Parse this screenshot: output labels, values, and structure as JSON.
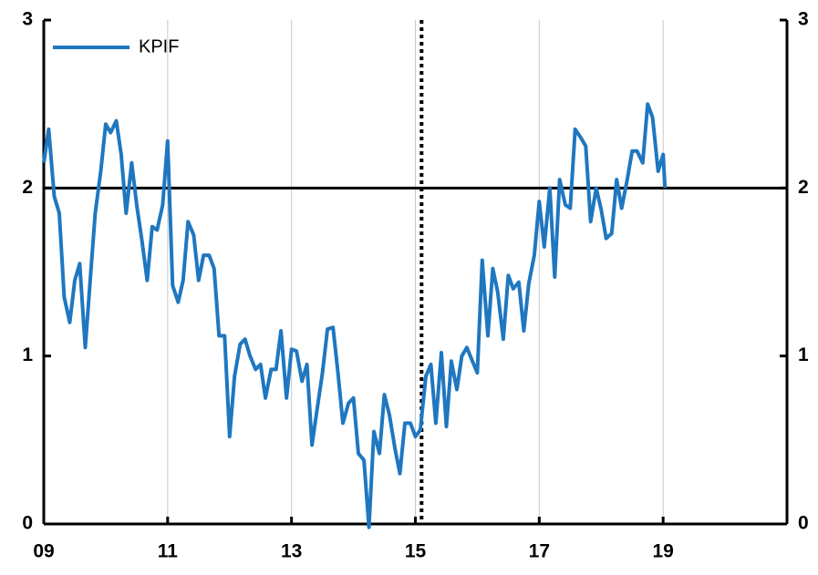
{
  "chart_data": {
    "type": "line",
    "x": [
      2009,
      2009.08,
      2009.17,
      2009.25,
      2009.33,
      2009.42,
      2009.5,
      2009.58,
      2009.67,
      2009.75,
      2009.83,
      2009.92,
      2010,
      2010.08,
      2010.17,
      2010.25,
      2010.33,
      2010.42,
      2010.5,
      2010.58,
      2010.67,
      2010.75,
      2010.83,
      2010.92,
      2011,
      2011.08,
      2011.17,
      2011.25,
      2011.33,
      2011.42,
      2011.5,
      2011.58,
      2011.67,
      2011.75,
      2011.83,
      2011.92,
      2012,
      2012.08,
      2012.17,
      2012.25,
      2012.33,
      2012.42,
      2012.5,
      2012.58,
      2012.67,
      2012.75,
      2012.83,
      2012.92,
      2013,
      2013.08,
      2013.17,
      2013.25,
      2013.33,
      2013.42,
      2013.5,
      2013.58,
      2013.67,
      2013.75,
      2013.83,
      2013.92,
      2014,
      2014.08,
      2014.17,
      2014.25,
      2014.33,
      2014.42,
      2014.5,
      2014.58,
      2014.67,
      2014.75,
      2014.83,
      2014.92,
      2015,
      2015.08,
      2015.17,
      2015.25,
      2015.33,
      2015.42,
      2015.5,
      2015.58,
      2015.67,
      2015.75,
      2015.83,
      2015.92,
      2016,
      2016.08,
      2016.17,
      2016.25,
      2016.33,
      2016.42,
      2016.5,
      2016.58,
      2016.67,
      2016.75,
      2016.83,
      2016.92,
      2017,
      2017.08,
      2017.17,
      2017.25,
      2017.33,
      2017.42,
      2017.5,
      2017.58,
      2017.67,
      2017.75,
      2017.83,
      2017.92,
      2018,
      2018.08,
      2018.17,
      2018.25,
      2018.33,
      2018.42,
      2018.5,
      2018.58,
      2018.67,
      2018.75,
      2018.83,
      2018.92,
      2019,
      2019.03
    ],
    "series": [
      {
        "name": "KPIF",
        "color": "#1f77c0",
        "values": [
          2.15,
          2.35,
          1.95,
          1.85,
          1.35,
          1.2,
          1.45,
          1.55,
          1.05,
          1.45,
          1.85,
          2.1,
          2.38,
          2.33,
          2.4,
          2.2,
          1.85,
          2.15,
          1.9,
          1.7,
          1.45,
          1.77,
          1.75,
          1.9,
          2.28,
          1.42,
          1.32,
          1.45,
          1.8,
          1.72,
          1.45,
          1.6,
          1.6,
          1.52,
          1.12,
          1.12,
          0.52,
          0.88,
          1.07,
          1.1,
          1.0,
          0.92,
          0.95,
          0.75,
          0.92,
          0.92,
          1.15,
          0.75,
          1.04,
          1.03,
          0.85,
          0.95,
          0.47,
          0.7,
          0.9,
          1.16,
          1.17,
          0.9,
          0.6,
          0.72,
          0.75,
          0.42,
          0.38,
          -0.02,
          0.55,
          0.42,
          0.77,
          0.65,
          0.45,
          0.3,
          0.6,
          0.6,
          0.52,
          0.56,
          0.88,
          0.95,
          0.6,
          1.02,
          0.58,
          0.97,
          0.8,
          1.0,
          1.05,
          0.97,
          0.9,
          1.57,
          1.12,
          1.52,
          1.38,
          1.1,
          1.48,
          1.4,
          1.44,
          1.15,
          1.43,
          1.6,
          1.92,
          1.65,
          2.0,
          1.47,
          2.05,
          1.9,
          1.88,
          2.35,
          2.3,
          2.25,
          1.8,
          2.0,
          1.87,
          1.7,
          1.73,
          2.05,
          1.88,
          2.05,
          2.22,
          2.22,
          2.15,
          2.5,
          2.42,
          2.1,
          2.2,
          2.0
        ]
      }
    ],
    "xlim": [
      2009,
      2021
    ],
    "xticks": [
      {
        "value": 2009,
        "label": "09"
      },
      {
        "value": 2011,
        "label": "11"
      },
      {
        "value": 2013,
        "label": "13"
      },
      {
        "value": 2015,
        "label": "15"
      },
      {
        "value": 2017,
        "label": "17"
      },
      {
        "value": 2019,
        "label": "19"
      }
    ],
    "ylim": [
      0,
      3
    ],
    "yticks": [
      0,
      1,
      2,
      3
    ],
    "y2lim": [
      0,
      3
    ],
    "y2ticks": [
      0,
      1,
      2,
      3
    ],
    "hlines": [
      2
    ],
    "vlines": [
      2015.1
    ],
    "grid": true,
    "legend": "upper left"
  }
}
